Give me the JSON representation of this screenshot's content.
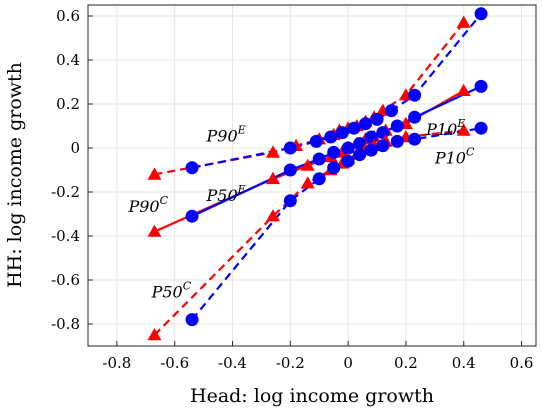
{
  "chart_data": {
    "type": "scatter",
    "xlabel": "Head: log income growth",
    "ylabel": "HH: log income growth",
    "xlim": [
      -0.9,
      0.65
    ],
    "ylim": [
      -0.9,
      0.65
    ],
    "xticks": [
      -0.8,
      -0.6,
      -0.4,
      -0.2,
      0,
      0.2,
      0.4,
      0.6
    ],
    "yticks": [
      -0.8,
      -0.6,
      -0.4,
      -0.2,
      0,
      0.2,
      0.4,
      0.6
    ],
    "xtick_labels": [
      "-0.8",
      "-0.6",
      "-0.4",
      "-0.2",
      "0",
      "0.2",
      "0.4",
      "0.6"
    ],
    "ytick_labels": [
      "-0.8",
      "-0.6",
      "-0.4",
      "-0.2",
      "0",
      "0.2",
      "0.4",
      "0.6"
    ],
    "grid": true,
    "series": [
      {
        "key": "P90C",
        "color": "#ff0000",
        "marker": "triangle",
        "line": "dashed",
        "x": [
          -0.67,
          -0.26,
          -0.18,
          -0.1,
          -0.05,
          -0.03,
          0.0,
          0.03,
          0.06,
          0.09,
          0.12,
          0.2,
          0.4
        ],
        "y": [
          -0.12,
          -0.02,
          0.01,
          0.04,
          0.06,
          0.08,
          0.09,
          0.1,
          0.12,
          0.14,
          0.17,
          0.24,
          0.57
        ]
      },
      {
        "key": "P90E",
        "color": "#0000ff",
        "marker": "circle",
        "line": "dashed",
        "x": [
          -0.54,
          -0.2,
          -0.11,
          -0.06,
          -0.02,
          0.02,
          0.06,
          0.1,
          0.15,
          0.23,
          0.46
        ],
        "y": [
          -0.09,
          0.0,
          0.03,
          0.05,
          0.07,
          0.09,
          0.11,
          0.13,
          0.17,
          0.24,
          0.61
        ]
      },
      {
        "key": "P50C",
        "color": "#ff0000",
        "marker": "triangle",
        "line": "solid",
        "x": [
          -0.67,
          -0.26,
          -0.14,
          -0.06,
          -0.02,
          0.0,
          0.03,
          0.06,
          0.09,
          0.13,
          0.2,
          0.4
        ],
        "y": [
          -0.38,
          -0.14,
          -0.08,
          -0.04,
          -0.02,
          0.0,
          0.02,
          0.04,
          0.05,
          0.08,
          0.11,
          0.26
        ]
      },
      {
        "key": "P50E",
        "color": "#0000ff",
        "marker": "circle",
        "line": "solid",
        "x": [
          -0.54,
          -0.2,
          -0.1,
          -0.05,
          0.0,
          0.04,
          0.08,
          0.12,
          0.17,
          0.23,
          0.46
        ],
        "y": [
          -0.31,
          -0.1,
          -0.05,
          -0.02,
          0.0,
          0.02,
          0.05,
          0.07,
          0.1,
          0.14,
          0.28
        ]
      },
      {
        "key": "P10C",
        "color": "#ff0000",
        "marker": "triangle",
        "line": "dashed",
        "x": [
          -0.67,
          -0.26,
          -0.14,
          -0.06,
          -0.02,
          0.0,
          0.03,
          0.06,
          0.09,
          0.13,
          0.2,
          0.4
        ],
        "y": [
          -0.85,
          -0.31,
          -0.16,
          -0.1,
          -0.07,
          -0.05,
          -0.03,
          -0.01,
          0.01,
          0.03,
          0.05,
          0.08
        ]
      },
      {
        "key": "P10E",
        "color": "#0000ff",
        "marker": "circle",
        "line": "dashed",
        "x": [
          -0.54,
          -0.2,
          -0.1,
          -0.05,
          0.0,
          0.04,
          0.08,
          0.12,
          0.17,
          0.23,
          0.46
        ],
        "y": [
          -0.78,
          -0.24,
          -0.14,
          -0.09,
          -0.06,
          -0.03,
          -0.01,
          0.01,
          0.03,
          0.04,
          0.09
        ]
      }
    ],
    "annotations": [
      {
        "base": "P90",
        "sup": "E",
        "x": -0.49,
        "y": 0.03
      },
      {
        "base": "P90",
        "sup": "C",
        "x": -0.76,
        "y": -0.29
      },
      {
        "base": "P50",
        "sup": "E",
        "x": -0.49,
        "y": -0.24
      },
      {
        "base": "P50",
        "sup": "C",
        "x": -0.68,
        "y": -0.68
      },
      {
        "base": "P10",
        "sup": "E",
        "x": 0.27,
        "y": 0.06
      },
      {
        "base": "P10",
        "sup": "C",
        "x": 0.3,
        "y": -0.07
      }
    ]
  }
}
